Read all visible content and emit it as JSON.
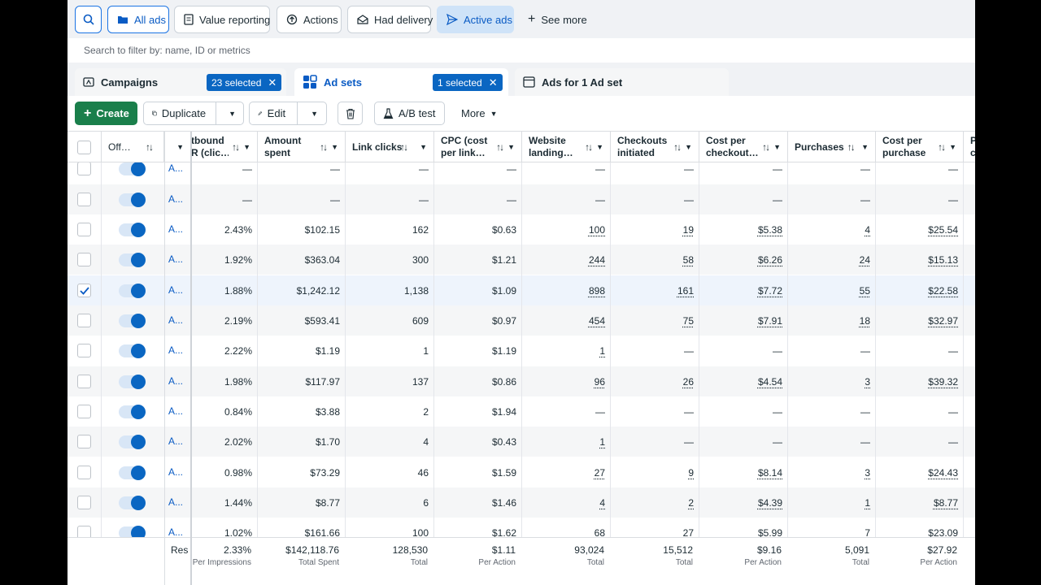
{
  "filters": {
    "all_ads": "All ads",
    "value_reporting": "Value reporting",
    "actions": "Actions",
    "had_delivery": "Had delivery",
    "active_ads": "Active ads",
    "see_more": "See more"
  },
  "search": {
    "placeholder": "Search to filter by: name, ID or metrics"
  },
  "tabs": {
    "campaigns": "Campaigns",
    "campaigns_selected": "23 selected",
    "adsets": "Ad sets",
    "adsets_selected": "1 selected",
    "ads": "Ads for 1 Ad set"
  },
  "toolbar": {
    "create": "Create",
    "duplicate": "Duplicate",
    "edit": "Edit",
    "abtest": "A/B test",
    "more": "More"
  },
  "table": {
    "headers": {
      "off": "Off…",
      "outbound": "tbound\nR (clic…",
      "amount": "Amount\nspent",
      "link_clicks": "Link clicks",
      "cpc": "CPC (cost\nper link…",
      "landing": "Website\nlanding…",
      "checkouts": "Checkouts\ninitiated",
      "cost_checkout": "Cost per\ncheckout…",
      "purchases": "Purchases",
      "cost_purchase": "Cost per\npurchase",
      "partial": "P\nc"
    },
    "rows": [
      {
        "name": "A...",
        "ctr": "—",
        "spent": "—",
        "clicks": "—",
        "cpc": "—",
        "landing": "—",
        "checkouts": "—",
        "cpco": "—",
        "purchases": "—",
        "cpp": "—",
        "selected": false
      },
      {
        "name": "A...",
        "ctr": "—",
        "spent": "—",
        "clicks": "—",
        "cpc": "—",
        "landing": "—",
        "checkouts": "—",
        "cpco": "—",
        "purchases": "—",
        "cpp": "—",
        "selected": false
      },
      {
        "name": "A...",
        "ctr": "2.43%",
        "spent": "$102.15",
        "clicks": "162",
        "cpc": "$0.63",
        "landing": "100",
        "checkouts": "19",
        "cpco": "$5.38",
        "purchases": "4",
        "cpp": "$25.54",
        "selected": false
      },
      {
        "name": "A...",
        "ctr": "1.92%",
        "spent": "$363.04",
        "clicks": "300",
        "cpc": "$1.21",
        "landing": "244",
        "checkouts": "58",
        "cpco": "$6.26",
        "purchases": "24",
        "cpp": "$15.13",
        "selected": false
      },
      {
        "name": "A...",
        "ctr": "1.88%",
        "spent": "$1,242.12",
        "clicks": "1,138",
        "cpc": "$1.09",
        "landing": "898",
        "checkouts": "161",
        "cpco": "$7.72",
        "purchases": "55",
        "cpp": "$22.58",
        "selected": true
      },
      {
        "name": "A...",
        "ctr": "2.19%",
        "spent": "$593.41",
        "clicks": "609",
        "cpc": "$0.97",
        "landing": "454",
        "checkouts": "75",
        "cpco": "$7.91",
        "purchases": "18",
        "cpp": "$32.97",
        "selected": false
      },
      {
        "name": "A...",
        "ctr": "2.22%",
        "spent": "$1.19",
        "clicks": "1",
        "cpc": "$1.19",
        "landing": "1",
        "checkouts": "—",
        "cpco": "—",
        "purchases": "—",
        "cpp": "—",
        "selected": false
      },
      {
        "name": "A...",
        "ctr": "1.98%",
        "spent": "$117.97",
        "clicks": "137",
        "cpc": "$0.86",
        "landing": "96",
        "checkouts": "26",
        "cpco": "$4.54",
        "purchases": "3",
        "cpp": "$39.32",
        "selected": false
      },
      {
        "name": "A...",
        "ctr": "0.84%",
        "spent": "$3.88",
        "clicks": "2",
        "cpc": "$1.94",
        "landing": "—",
        "checkouts": "—",
        "cpco": "—",
        "purchases": "—",
        "cpp": "—",
        "selected": false
      },
      {
        "name": "A...",
        "ctr": "2.02%",
        "spent": "$1.70",
        "clicks": "4",
        "cpc": "$0.43",
        "landing": "1",
        "checkouts": "—",
        "cpco": "—",
        "purchases": "—",
        "cpp": "—",
        "selected": false
      },
      {
        "name": "A...",
        "ctr": "0.98%",
        "spent": "$73.29",
        "clicks": "46",
        "cpc": "$1.59",
        "landing": "27",
        "checkouts": "9",
        "cpco": "$8.14",
        "purchases": "3",
        "cpp": "$24.43",
        "selected": false
      },
      {
        "name": "A...",
        "ctr": "1.44%",
        "spent": "$8.77",
        "clicks": "6",
        "cpc": "$1.46",
        "landing": "4",
        "checkouts": "2",
        "cpco": "$4.39",
        "purchases": "1",
        "cpp": "$8.77",
        "selected": false
      },
      {
        "name": "A...",
        "ctr": "1.02%",
        "spent": "$161.66",
        "clicks": "100",
        "cpc": "$1.62",
        "landing": "68",
        "checkouts": "27",
        "cpco": "$5.99",
        "purchases": "7",
        "cpp": "$23.09",
        "selected": false
      }
    ],
    "footer": {
      "res": "Res",
      "ctr": {
        "value": "2.33%",
        "label": "Per Impressions"
      },
      "spent": {
        "value": "$142,118.76",
        "label": "Total Spent"
      },
      "clicks": {
        "value": "128,530",
        "label": "Total"
      },
      "cpc": {
        "value": "$1.11",
        "label": "Per Action"
      },
      "landing": {
        "value": "93,024",
        "label": "Total"
      },
      "checkouts": {
        "value": "15,512",
        "label": "Total"
      },
      "cpco": {
        "value": "$9.16",
        "label": "Per Action"
      },
      "purchases": {
        "value": "5,091",
        "label": "Total"
      },
      "cpp": {
        "value": "$27.92",
        "label": "Per Action"
      }
    }
  },
  "colors": {
    "accent": "#0a66c2",
    "create": "#1a7f4b"
  }
}
